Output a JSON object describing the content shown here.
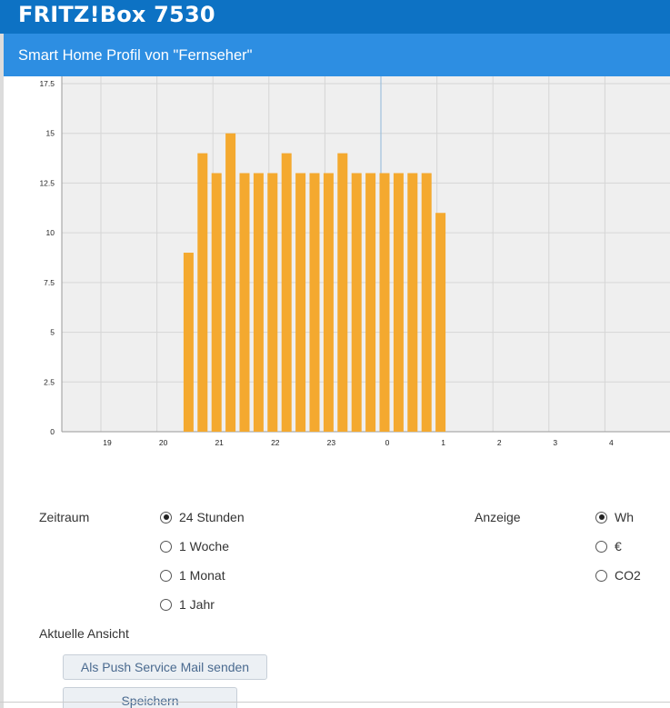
{
  "header": {
    "title": "FRITZ!Box 7530"
  },
  "subheader": {
    "title": "Smart Home Profil von \"Fernseher\""
  },
  "chart_data": {
    "type": "bar",
    "categories": [
      "20:30",
      "20:45",
      "21:00",
      "21:15",
      "21:30",
      "21:45",
      "22:00",
      "22:15",
      "22:30",
      "22:45",
      "23:00",
      "23:15",
      "23:30",
      "23:45",
      "0:00",
      "0:15",
      "0:30",
      "0:45",
      "1:00"
    ],
    "values": [
      9,
      14,
      13,
      15,
      13,
      13,
      13,
      14,
      13,
      13,
      13,
      14,
      13,
      13,
      13,
      13,
      13,
      13,
      11
    ],
    "title": "",
    "xlabel": "",
    "ylabel": "",
    "ylim": [
      0,
      17.5
    ],
    "yticks": [
      "0",
      "2.5",
      "5",
      "7.5",
      "10",
      "12.5",
      "15",
      "17.5"
    ],
    "xticks": [
      "19",
      "20",
      "21",
      "22",
      "23",
      "0",
      "1",
      "2",
      "3",
      "4"
    ],
    "bar_color": "#f4a92f",
    "background": "#efefef",
    "grid": true
  },
  "controls": {
    "zeitraum_label": "Zeitraum",
    "anzeige_label": "Anzeige",
    "zeitraum_options": [
      {
        "label": "24 Stunden",
        "checked": true
      },
      {
        "label": "1 Woche",
        "checked": false
      },
      {
        "label": "1 Monat",
        "checked": false
      },
      {
        "label": "1 Jahr",
        "checked": false
      }
    ],
    "anzeige_options": [
      {
        "label": "Wh",
        "checked": true
      },
      {
        "label": "€",
        "checked": false
      },
      {
        "label": "CO2",
        "checked": false
      }
    ],
    "aktuelle_ansicht_label": "Aktuelle Ansicht",
    "push_button": "Als Push Service Mail senden",
    "save_button": "Speichern"
  },
  "colors": {
    "topbar": "#0d72c4",
    "subbar": "#2d8ee2",
    "bar": "#f4a92f"
  }
}
